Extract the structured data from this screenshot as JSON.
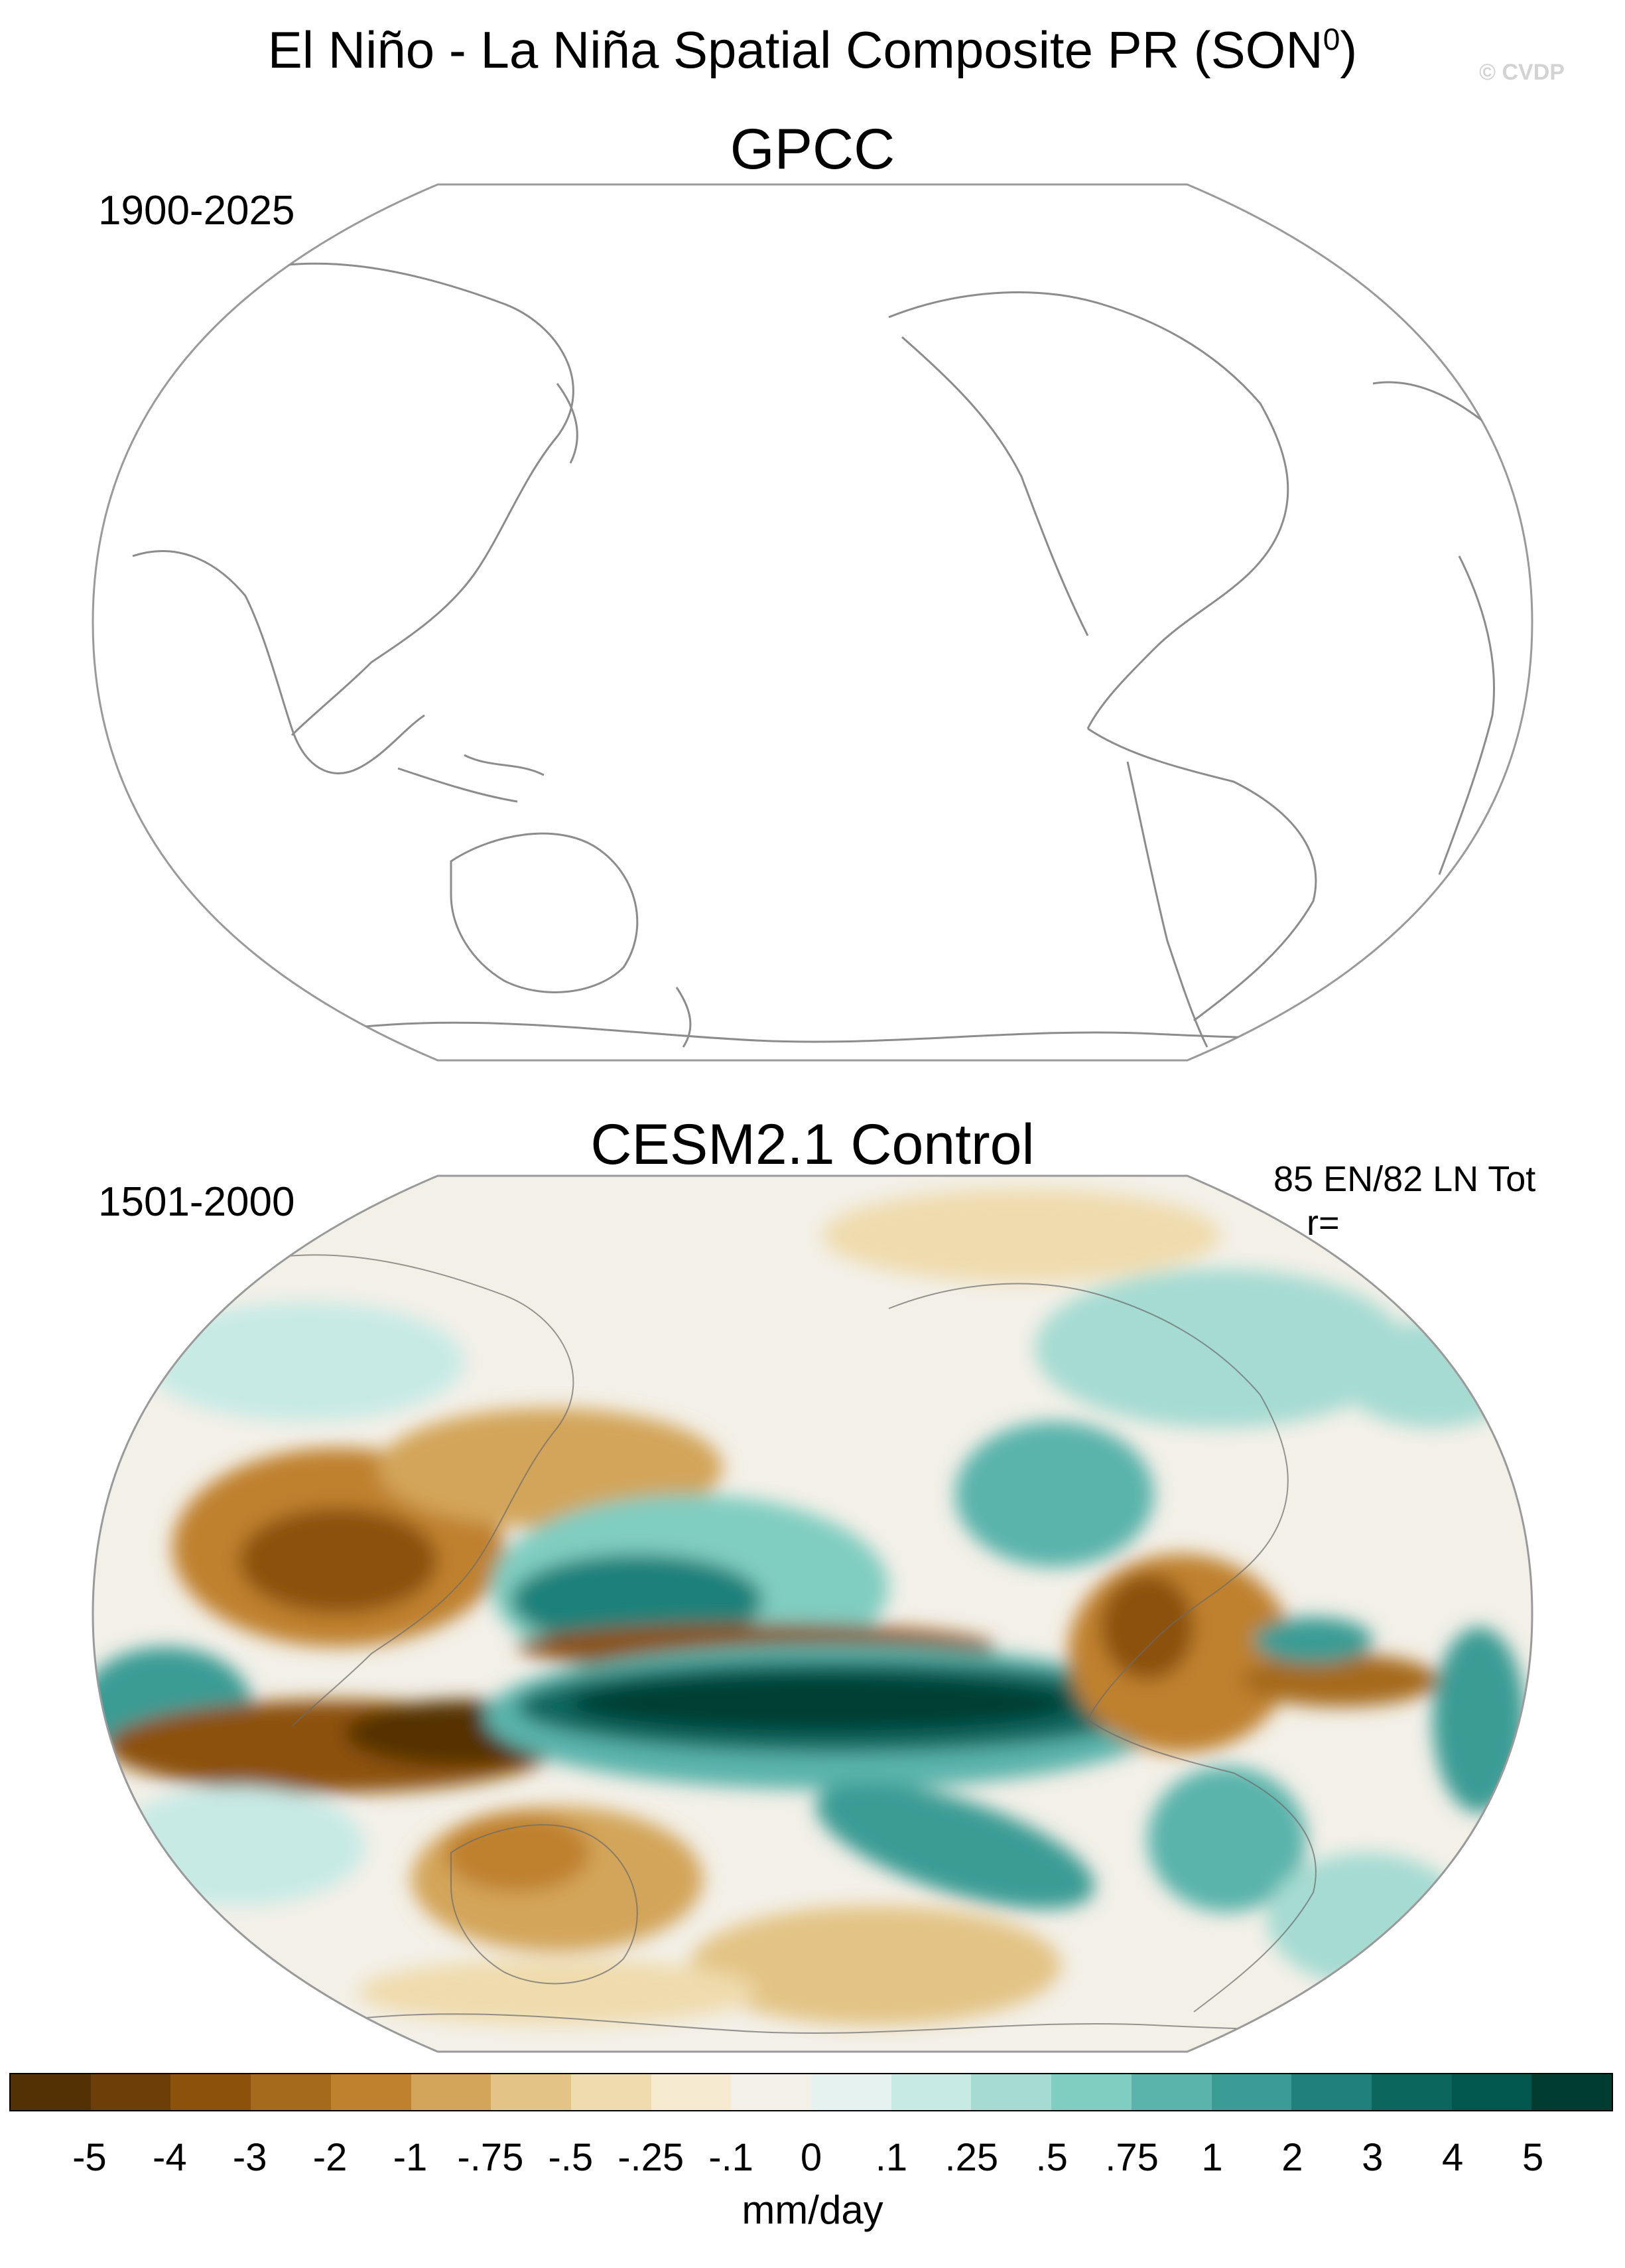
{
  "title": {
    "text": "El Niño - La Niña Spatial Composite PR (SON",
    "superscript": "0",
    "suffix": ")"
  },
  "watermark": "© CVDP",
  "panels": [
    {
      "title": "GPCC",
      "period": "1900-2025",
      "projection": "Robinson",
      "center_longitude": "Pacific-centered",
      "filled": false
    },
    {
      "title": "CESM2.1 Control",
      "period": "1501-2000",
      "stats_line1": "85 EN/82 LN Tot",
      "stats_line2": "r=",
      "projection": "Robinson",
      "center_longitude": "Pacific-centered",
      "filled": true
    }
  ],
  "colorbar": {
    "labels": [
      "-5",
      "-4",
      "-3",
      "-2",
      "-1",
      "-.75",
      "-.5",
      "-.25",
      "-.1",
      "0",
      ".1",
      ".25",
      ".5",
      ".75",
      "1",
      "2",
      "3",
      "4",
      "5"
    ],
    "colors": [
      "#543005",
      "#6e3e09",
      "#8c510a",
      "#a66a1c",
      "#bf812d",
      "#d3a55a",
      "#e3c486",
      "#efdcae",
      "#f6ead0",
      "#f3f0e8",
      "#e6f2f0",
      "#c7eae5",
      "#a6dbd2",
      "#80cdc1",
      "#5ab4ac",
      "#3a9c94",
      "#1f8179",
      "#0b665e",
      "#01574e",
      "#003c30"
    ],
    "units": "mm/day"
  },
  "colors": {
    "dry_strong": "#543005",
    "dry": "#bf812d",
    "dry_light": "#e3c486",
    "neutral": "#f3f0e8",
    "wet_light": "#a6dbd2",
    "wet": "#3a9c94",
    "wet_strong": "#003c30",
    "coastline": "#8c8c8c"
  }
}
